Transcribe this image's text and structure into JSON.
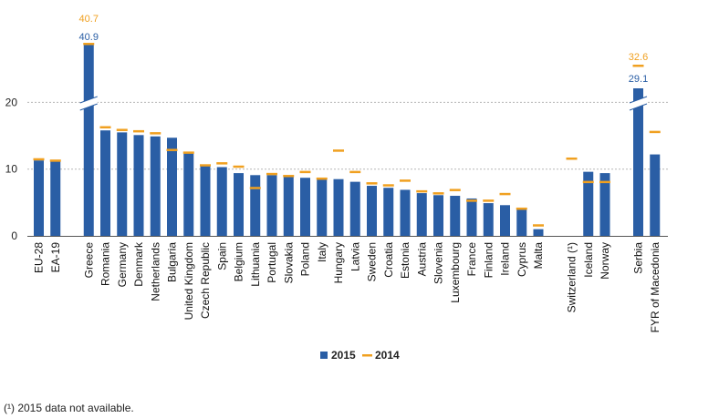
{
  "chart_data": {
    "type": "bar",
    "categories": [
      "EU-28",
      "EA-19",
      "",
      "Greece",
      "Romania",
      "Germany",
      "Denmark",
      "Netherlands",
      "Bulgaria",
      "United Kingdom",
      "Czech Republic",
      "Spain",
      "Belgium",
      "Lithuania",
      "Portugal",
      "Slovakia",
      "Poland",
      "Italy",
      "Hungary",
      "Latvia",
      "Sweden",
      "Croatia",
      "Estonia",
      "Austria",
      "Slovenia",
      "Luxembourg",
      "France",
      "Finland",
      "Ireland",
      "Cyprus",
      "Malta",
      "",
      "Switzerland (¹)",
      "Iceland",
      "Norway",
      "",
      "Serbia",
      "FYR of Macedonia"
    ],
    "series": [
      {
        "name": "2015",
        "color": "#2a5ea5",
        "values": [
          11.3,
          11.2,
          null,
          40.9,
          15.8,
          15.5,
          15.1,
          14.9,
          14.7,
          12.4,
          10.5,
          10.3,
          9.4,
          9.1,
          9.1,
          8.9,
          8.7,
          8.5,
          8.5,
          8.1,
          7.5,
          7.2,
          6.9,
          6.4,
          6.1,
          6.0,
          5.6,
          4.9,
          4.6,
          4.0,
          1.0,
          null,
          null,
          9.6,
          9.4,
          null,
          29.1,
          12.2
        ]
      },
      {
        "name": "2014",
        "color": "#f0a020",
        "values": [
          11.5,
          11.3,
          null,
          40.7,
          16.3,
          15.9,
          15.7,
          15.4,
          12.9,
          12.5,
          10.6,
          10.9,
          10.4,
          7.2,
          9.3,
          9.0,
          9.6,
          8.6,
          12.8,
          9.6,
          7.9,
          7.6,
          8.3,
          6.7,
          6.4,
          6.9,
          5.3,
          5.3,
          6.3,
          4.1,
          1.6,
          null,
          11.6,
          8.1,
          8.1,
          null,
          32.6,
          15.6
        ]
      }
    ],
    "data_labels": {
      "greece_2014": "40.7",
      "greece_2015": "40.9",
      "serbia_2014": "32.6",
      "serbia_2015": "29.1"
    },
    "y_ticks": [
      "0",
      "10",
      "20"
    ],
    "ylim": [
      0,
      20
    ],
    "axis_break": true,
    "grid": true,
    "legend": {
      "position": "bottom",
      "entries": [
        "2015",
        "2014"
      ]
    }
  },
  "footnote": "(¹) 2015 data not available."
}
